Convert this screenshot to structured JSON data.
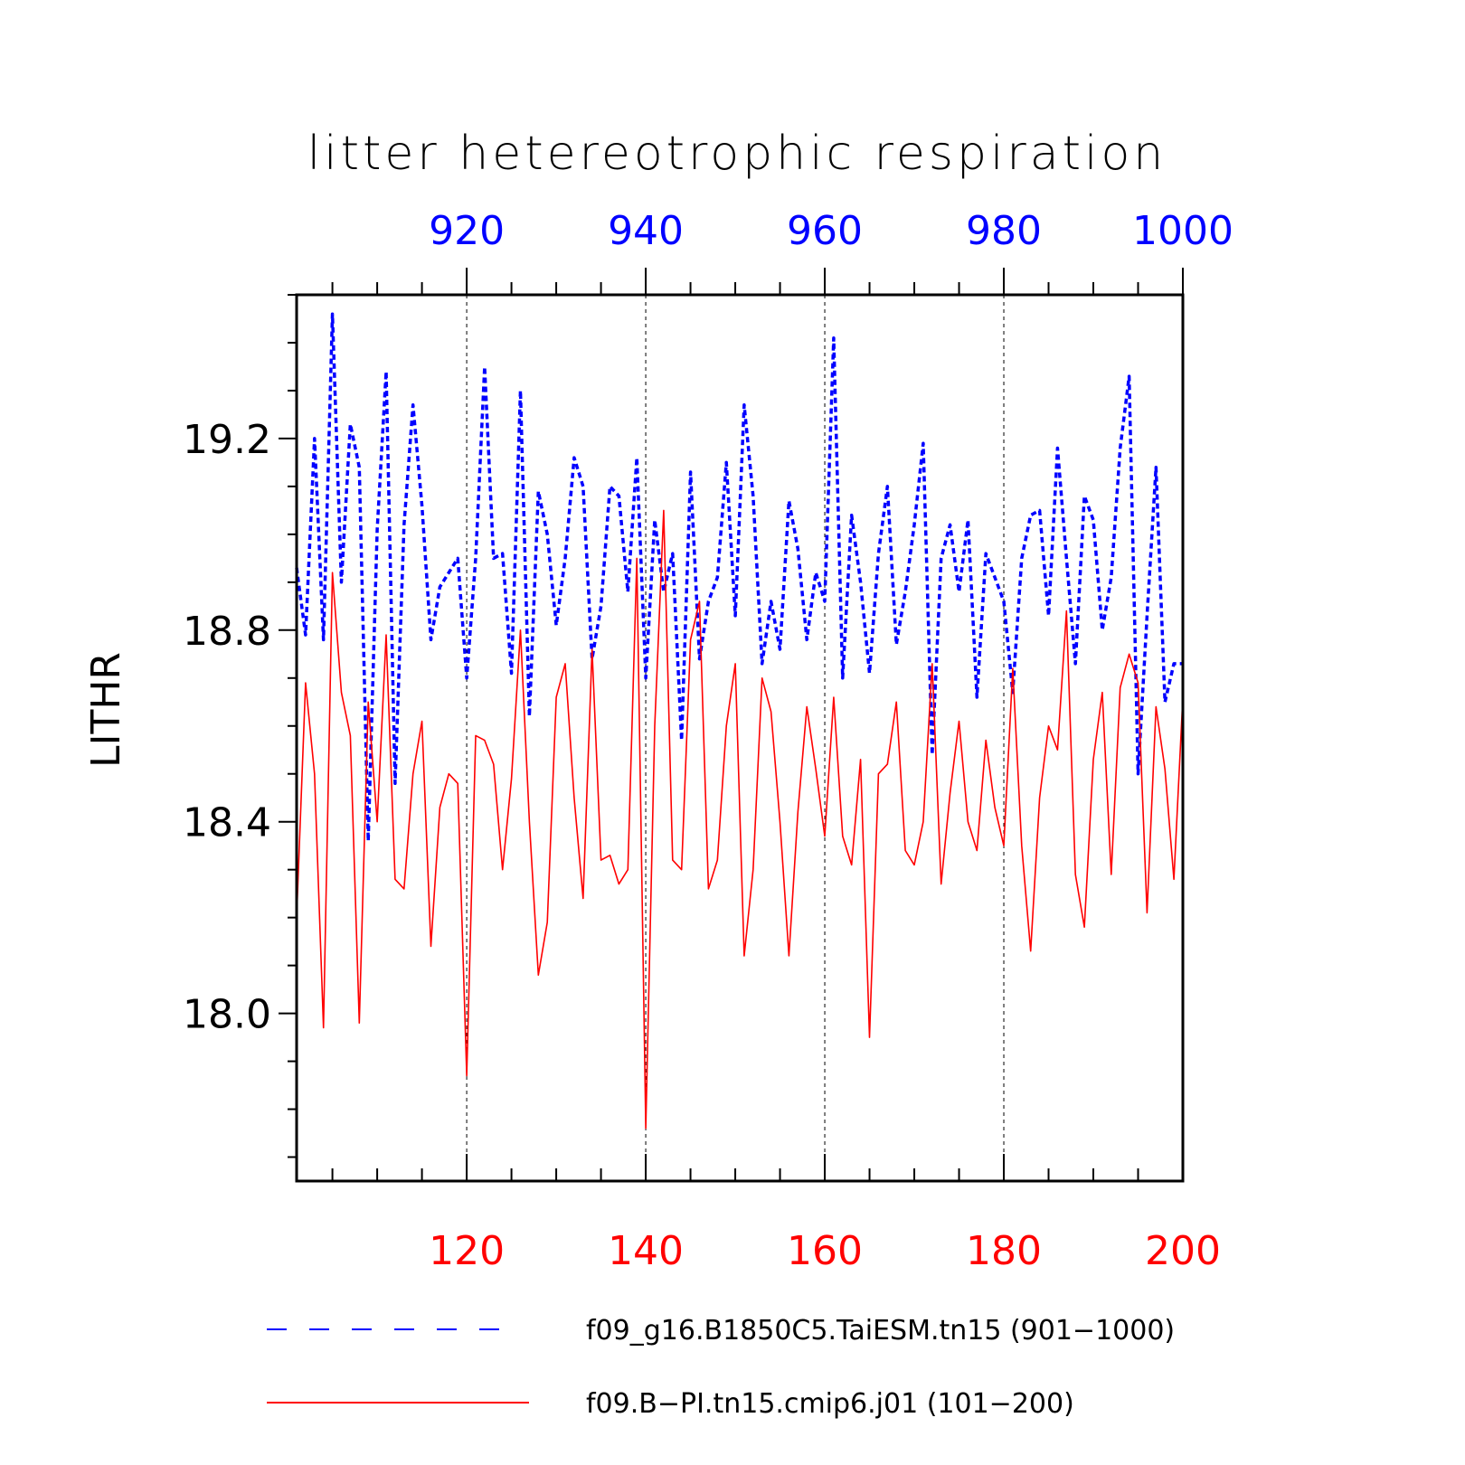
{
  "chart_data": {
    "type": "line",
    "title": "litter hetereotrophic respiration",
    "ylabel": "LITHR",
    "ylim": [
      17.65,
      19.5
    ],
    "yticks": [
      18.0,
      18.4,
      18.8,
      19.2
    ],
    "ytick_labels": [
      "18.0",
      "18.4",
      "18.8",
      "19.2"
    ],
    "grid_x": true,
    "legend_position": "bottom",
    "x_bottom": {
      "range": [
        101,
        200
      ],
      "ticks": [
        120,
        140,
        160,
        180,
        200
      ],
      "tick_labels": [
        "120",
        "140",
        "160",
        "180",
        "200"
      ],
      "color": "#ff0000"
    },
    "x_top": {
      "range": [
        901,
        1000
      ],
      "ticks": [
        920,
        940,
        960,
        980,
        1000
      ],
      "tick_labels": [
        "920",
        "940",
        "960",
        "980",
        "1000"
      ],
      "color": "#0000ff"
    },
    "series": [
      {
        "name": "f09_g16.B1850C5.TaiESM.tn15 (901−1000)",
        "axis": "top",
        "color": "#0000ff",
        "style": "dashed",
        "x_start": 901,
        "values": [
          18.93,
          18.79,
          19.2,
          18.78,
          19.46,
          18.9,
          19.23,
          19.14,
          18.36,
          19.01,
          19.34,
          18.48,
          19.02,
          19.27,
          19.06,
          18.78,
          18.89,
          18.92,
          18.95,
          18.7,
          18.95,
          19.35,
          18.95,
          18.96,
          18.71,
          19.3,
          18.62,
          19.09,
          19.0,
          18.81,
          18.95,
          19.16,
          19.1,
          18.74,
          18.85,
          19.1,
          19.08,
          18.88,
          19.16,
          18.7,
          19.03,
          18.88,
          18.96,
          18.57,
          19.13,
          18.74,
          18.86,
          18.91,
          19.15,
          18.83,
          19.27,
          19.08,
          18.73,
          18.86,
          18.76,
          19.07,
          18.97,
          18.78,
          18.92,
          18.86,
          19.41,
          18.7,
          19.04,
          18.9,
          18.71,
          18.96,
          19.1,
          18.77,
          18.88,
          19.02,
          19.19,
          18.54,
          18.95,
          19.02,
          18.88,
          19.03,
          18.66,
          18.96,
          18.91,
          18.86,
          18.67,
          18.95,
          19.04,
          19.05,
          18.83,
          19.18,
          18.95,
          18.73,
          19.08,
          19.03,
          18.8,
          18.91,
          19.18,
          19.33,
          18.5,
          18.83,
          19.14,
          18.65,
          18.73,
          18.73
        ]
      },
      {
        "name": "f09.B−PI.tn15.cmip6.j01 (101−200)",
        "axis": "bottom",
        "color": "#ff0000",
        "style": "solid",
        "x_start": 101,
        "values": [
          18.2,
          18.69,
          18.5,
          17.97,
          18.92,
          18.67,
          18.58,
          17.98,
          18.65,
          18.4,
          18.79,
          18.28,
          18.26,
          18.5,
          18.61,
          18.14,
          18.43,
          18.5,
          18.48,
          17.87,
          18.58,
          18.57,
          18.52,
          18.3,
          18.49,
          18.8,
          18.4,
          18.08,
          18.19,
          18.66,
          18.73,
          18.45,
          18.24,
          18.76,
          18.32,
          18.33,
          18.27,
          18.3,
          18.95,
          17.76,
          18.6,
          19.05,
          18.32,
          18.3,
          18.78,
          18.86,
          18.26,
          18.32,
          18.6,
          18.73,
          18.12,
          18.3,
          18.7,
          18.63,
          18.4,
          18.12,
          18.42,
          18.64,
          18.51,
          18.37,
          18.66,
          18.37,
          18.31,
          18.53,
          17.95,
          18.5,
          18.52,
          18.65,
          18.34,
          18.31,
          18.4,
          18.73,
          18.27,
          18.46,
          18.61,
          18.4,
          18.34,
          18.57,
          18.43,
          18.35,
          18.72,
          18.35,
          18.13,
          18.45,
          18.6,
          18.55,
          18.84,
          18.29,
          18.18,
          18.53,
          18.67,
          18.29,
          18.68,
          18.75,
          18.69,
          18.21,
          18.64,
          18.51,
          18.28,
          18.66
        ]
      }
    ]
  }
}
